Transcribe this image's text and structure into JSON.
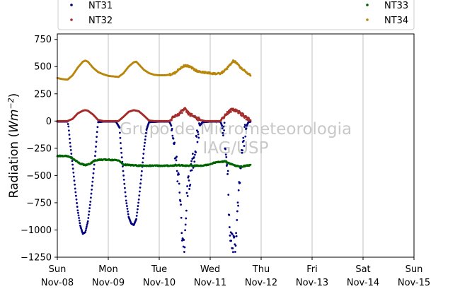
{
  "chart_data": {
    "type": "scatter",
    "ylabel_main": "Radiation (",
    "ylabel_unit_base": "Wm",
    "ylabel_unit_exp": "−2",
    "ylabel_close": ")",
    "ylim": [
      -1250,
      800
    ],
    "xlim_days": [
      0,
      7
    ],
    "y_ticks": [
      750,
      500,
      250,
      0,
      -250,
      -500,
      -750,
      -1000,
      -1250
    ],
    "y_tick_labels": [
      "750",
      "500",
      "250",
      "0",
      "−250",
      "−500",
      "−750",
      "−1000",
      "−1250"
    ],
    "x_ticks": [
      {
        "day": "Sun",
        "date": "Nov-08"
      },
      {
        "day": "Mon",
        "date": "Nov-09"
      },
      {
        "day": "Tue",
        "date": "Nov-10"
      },
      {
        "day": "Wed",
        "date": "Nov-11"
      },
      {
        "day": "Thu",
        "date": "Nov-12"
      },
      {
        "day": "Fri",
        "date": "Nov-13"
      },
      {
        "day": "Sat",
        "date": "Nov-14"
      },
      {
        "day": "Sun",
        "date": "Nov-15"
      }
    ],
    "grid": "vertical",
    "legend_position": "top",
    "watermark": [
      "Grupo de Micrometeorologia",
      "IAG/USP"
    ],
    "series": [
      {
        "name": "NT31",
        "color": "#000080",
        "points": [
          [
            0.0,
            -5
          ],
          [
            0.1,
            -5
          ],
          [
            0.2,
            -5
          ],
          [
            0.22,
            -50
          ],
          [
            0.25,
            -200
          ],
          [
            0.3,
            -400
          ],
          [
            0.35,
            -620
          ],
          [
            0.4,
            -820
          ],
          [
            0.45,
            -960
          ],
          [
            0.5,
            -1035
          ],
          [
            0.55,
            -1020
          ],
          [
            0.6,
            -920
          ],
          [
            0.65,
            -740
          ],
          [
            0.7,
            -520
          ],
          [
            0.75,
            -280
          ],
          [
            0.78,
            -100
          ],
          [
            0.8,
            -10
          ],
          [
            0.9,
            -5
          ],
          [
            1.0,
            -5
          ],
          [
            1.15,
            -5
          ],
          [
            1.22,
            -60
          ],
          [
            1.25,
            -250
          ],
          [
            1.3,
            -500
          ],
          [
            1.35,
            -730
          ],
          [
            1.4,
            -880
          ],
          [
            1.45,
            -940
          ],
          [
            1.5,
            -955
          ],
          [
            1.55,
            -900
          ],
          [
            1.6,
            -720
          ],
          [
            1.65,
            -500
          ],
          [
            1.7,
            -260
          ],
          [
            1.75,
            -80
          ],
          [
            1.8,
            -10
          ],
          [
            2.0,
            -5
          ],
          [
            2.2,
            -5
          ],
          [
            2.27,
            -80
          ],
          [
            2.3,
            -250
          ],
          [
            2.35,
            -450
          ],
          [
            2.4,
            -620
          ],
          [
            2.45,
            -1050
          ],
          [
            2.5,
            -1170
          ],
          [
            2.55,
            -630
          ],
          [
            2.6,
            -540
          ],
          [
            2.65,
            -400
          ],
          [
            2.7,
            -280
          ],
          [
            2.75,
            -150
          ],
          [
            2.8,
            -40
          ],
          [
            2.85,
            -10
          ],
          [
            3.0,
            -5
          ],
          [
            3.2,
            -5
          ],
          [
            3.28,
            -100
          ],
          [
            3.3,
            -300
          ],
          [
            3.35,
            -500
          ],
          [
            3.38,
            -1060
          ],
          [
            3.42,
            -1080
          ],
          [
            3.45,
            -1140
          ],
          [
            3.5,
            -1120
          ],
          [
            3.55,
            -750
          ],
          [
            3.6,
            -430
          ],
          [
            3.65,
            -200
          ],
          [
            3.7,
            -60
          ],
          [
            3.75,
            -10
          ],
          [
            3.8,
            -5
          ]
        ]
      },
      {
        "name": "NT32",
        "color": "#a52a2a",
        "points": [
          [
            0.0,
            0
          ],
          [
            0.2,
            0
          ],
          [
            0.3,
            20
          ],
          [
            0.4,
            70
          ],
          [
            0.5,
            95
          ],
          [
            0.55,
            100
          ],
          [
            0.6,
            95
          ],
          [
            0.7,
            60
          ],
          [
            0.8,
            10
          ],
          [
            0.9,
            0
          ],
          [
            1.0,
            0
          ],
          [
            1.2,
            0
          ],
          [
            1.3,
            40
          ],
          [
            1.4,
            85
          ],
          [
            1.5,
            100
          ],
          [
            1.6,
            90
          ],
          [
            1.7,
            50
          ],
          [
            1.8,
            5
          ],
          [
            1.9,
            0
          ],
          [
            2.0,
            0
          ],
          [
            2.2,
            0
          ],
          [
            2.3,
            40
          ],
          [
            2.4,
            70
          ],
          [
            2.5,
            110
          ],
          [
            2.55,
            80
          ],
          [
            2.6,
            60
          ],
          [
            2.7,
            40
          ],
          [
            2.8,
            10
          ],
          [
            2.9,
            0
          ],
          [
            3.0,
            0
          ],
          [
            3.2,
            0
          ],
          [
            3.3,
            60
          ],
          [
            3.4,
            95
          ],
          [
            3.45,
            110
          ],
          [
            3.5,
            100
          ],
          [
            3.6,
            70
          ],
          [
            3.7,
            30
          ],
          [
            3.8,
            5
          ]
        ]
      },
      {
        "name": "NT33",
        "color": "#006400",
        "points": [
          [
            0.0,
            -320
          ],
          [
            0.15,
            -320
          ],
          [
            0.25,
            -330
          ],
          [
            0.35,
            -360
          ],
          [
            0.45,
            -390
          ],
          [
            0.55,
            -405
          ],
          [
            0.65,
            -390
          ],
          [
            0.7,
            -370
          ],
          [
            0.8,
            -355
          ],
          [
            0.9,
            -355
          ],
          [
            1.0,
            -355
          ],
          [
            1.2,
            -360
          ],
          [
            1.25,
            -380
          ],
          [
            1.3,
            -400
          ],
          [
            1.45,
            -405
          ],
          [
            1.6,
            -410
          ],
          [
            1.8,
            -410
          ],
          [
            2.0,
            -410
          ],
          [
            2.2,
            -410
          ],
          [
            2.4,
            -405
          ],
          [
            2.5,
            -410
          ],
          [
            2.6,
            -410
          ],
          [
            2.8,
            -410
          ],
          [
            2.9,
            -405
          ],
          [
            3.0,
            -395
          ],
          [
            3.1,
            -380
          ],
          [
            3.2,
            -375
          ],
          [
            3.3,
            -370
          ],
          [
            3.4,
            -395
          ],
          [
            3.5,
            -410
          ],
          [
            3.6,
            -420
          ],
          [
            3.7,
            -410
          ],
          [
            3.8,
            -405
          ]
        ]
      },
      {
        "name": "NT34",
        "color": "#b8860b",
        "points": [
          [
            0.0,
            395
          ],
          [
            0.1,
            385
          ],
          [
            0.2,
            380
          ],
          [
            0.3,
            420
          ],
          [
            0.4,
            490
          ],
          [
            0.5,
            545
          ],
          [
            0.55,
            555
          ],
          [
            0.6,
            545
          ],
          [
            0.7,
            490
          ],
          [
            0.8,
            450
          ],
          [
            0.9,
            430
          ],
          [
            1.0,
            415
          ],
          [
            1.1,
            410
          ],
          [
            1.2,
            405
          ],
          [
            1.3,
            440
          ],
          [
            1.4,
            500
          ],
          [
            1.5,
            540
          ],
          [
            1.55,
            545
          ],
          [
            1.6,
            520
          ],
          [
            1.7,
            470
          ],
          [
            1.8,
            440
          ],
          [
            1.9,
            425
          ],
          [
            2.0,
            420
          ],
          [
            2.1,
            420
          ],
          [
            2.2,
            425
          ],
          [
            2.3,
            440
          ],
          [
            2.4,
            480
          ],
          [
            2.5,
            510
          ],
          [
            2.6,
            500
          ],
          [
            2.7,
            470
          ],
          [
            2.8,
            450
          ],
          [
            2.9,
            445
          ],
          [
            3.0,
            440
          ],
          [
            3.1,
            435
          ],
          [
            3.2,
            435
          ],
          [
            3.3,
            470
          ],
          [
            3.4,
            520
          ],
          [
            3.45,
            550
          ],
          [
            3.5,
            540
          ],
          [
            3.6,
            490
          ],
          [
            3.7,
            450
          ],
          [
            3.8,
            420
          ]
        ]
      }
    ]
  }
}
